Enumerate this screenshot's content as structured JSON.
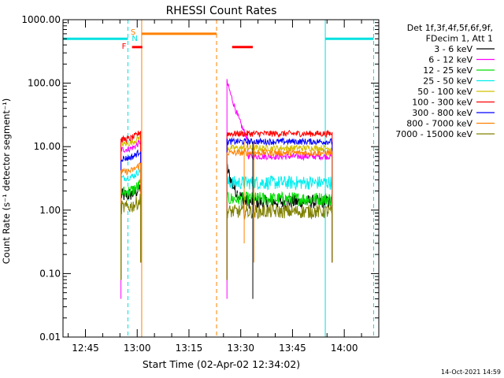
{
  "chart_data": {
    "type": "line",
    "title": "RHESSI Count Rates",
    "xlabel": "Start Time (02-Apr-02 12:34:02)",
    "ylabel": "Count Rate (s⁻¹ detector segment⁻¹)",
    "yscale": "log",
    "ylim": [
      0.01,
      1000
    ],
    "xlim_minutes_after_1230": [
      8.5,
      100
    ],
    "xticks": [
      {
        "label": "12:45",
        "minute": 15
      },
      {
        "label": "13:00",
        "minute": 30
      },
      {
        "label": "13:15",
        "minute": 45
      },
      {
        "label": "13:30",
        "minute": 60
      },
      {
        "label": "13:45",
        "minute": 75
      },
      {
        "label": "14:00",
        "minute": 90
      }
    ],
    "yticks": [
      {
        "label": "1000.00",
        "value": 1000
      },
      {
        "label": "100.00",
        "value": 100
      },
      {
        "label": "10.00",
        "value": 10
      },
      {
        "label": "1.00",
        "value": 1
      },
      {
        "label": "0.10",
        "value": 0.1
      },
      {
        "label": "0.01",
        "value": 0.01
      }
    ],
    "legend_placement": "right",
    "legend_header": [
      "Det 1f,3f,4f,5f,6f,9f,",
      "FDecim 1, Att 1"
    ],
    "series": [
      {
        "name": "3 - 6 keV",
        "color": "#000000",
        "level1": 1.7,
        "level2": 1.35
      },
      {
        "name": "6 - 12 keV",
        "color": "#ff00ff",
        "level1": 9.0,
        "level2": 7.0
      },
      {
        "name": "12 - 25 keV",
        "color": "#00dd00",
        "level1": 1.9,
        "level2": 1.5
      },
      {
        "name": "25 - 50 keV",
        "color": "#00eeee",
        "level1": 3.2,
        "level2": 2.7
      },
      {
        "name": "50 - 100 keV",
        "color": "#d4c000",
        "level1": 11.0,
        "level2": 9.5
      },
      {
        "name": "100 - 300 keV",
        "color": "#ff0000",
        "level1": 13.0,
        "level2": 16.0
      },
      {
        "name": "300 - 800 keV",
        "color": "#0000ff",
        "level1": 6.5,
        "level2": 12.0
      },
      {
        "name": "800 - 7000 keV",
        "color": "#ff8000",
        "level1": 4.0,
        "level2": 8.0
      },
      {
        "name": "7000 - 15000 keV",
        "color": "#808000",
        "level1": 1.1,
        "level2": 0.95
      }
    ],
    "intervals": [
      {
        "label": "N",
        "color": "#00e0e0",
        "y": 500,
        "segments": [
          [
            8.5,
            27.3
          ],
          [
            84.5,
            98.5
          ]
        ]
      },
      {
        "label": "S",
        "color": "#ff8000",
        "y": 600,
        "segments": [
          [
            31.3,
            53
          ]
        ]
      },
      {
        "label": "F",
        "color": "#ff0000",
        "y": 370,
        "segments": [
          [
            28.5,
            31.5
          ],
          [
            57.5,
            63.5
          ]
        ]
      }
    ],
    "vlines": [
      {
        "minute": 8.5,
        "color": "#00e0e0",
        "style": "solid"
      },
      {
        "minute": 27.3,
        "color": "#00e0e0",
        "style": "dashed"
      },
      {
        "minute": 84.5,
        "color": "#00e0e0",
        "style": "solid"
      },
      {
        "minute": 98.5,
        "color": "#00e0e0",
        "style": "dashed"
      },
      {
        "minute": 31.3,
        "color": "#ff8000",
        "style": "solid"
      },
      {
        "minute": 53,
        "color": "#ff8000",
        "style": "dashed"
      }
    ],
    "timestamp": "14-Oct-2021 14:59"
  }
}
